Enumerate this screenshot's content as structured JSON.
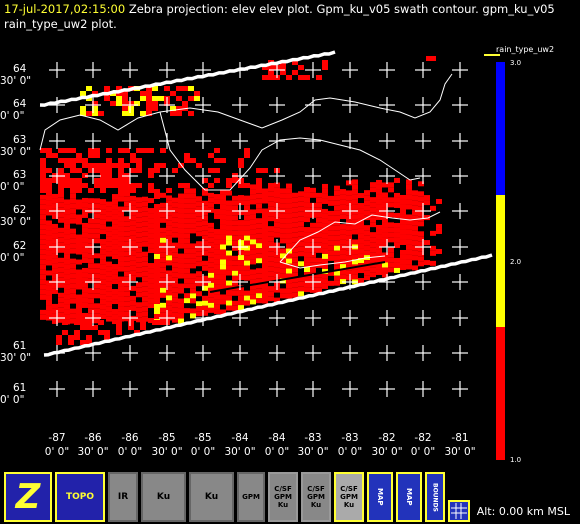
{
  "header": {
    "timestamp": "17-jul-2017,02:15:00",
    "line1_rest": "Zebra projection: elev elev  plot.  Gpm_ku_v05 swath contour.  gpm_ku_v05",
    "line2": "rain_type_uw2  plot."
  },
  "lat_labels": [
    {
      "deg": "64",
      "min": "30' 0\""
    },
    {
      "deg": "64",
      "min": "0' 0\""
    },
    {
      "deg": "63",
      "min": "30' 0\""
    },
    {
      "deg": "63",
      "min": "0' 0\""
    },
    {
      "deg": "62",
      "min": "30' 0\""
    },
    {
      "deg": "62",
      "min": "0' 0\""
    },
    {
      "deg": "61",
      "min": "30' 0\""
    },
    {
      "deg": "61",
      "min": "0' 0\""
    }
  ],
  "lon_labels": [
    {
      "deg": "-87",
      "min": "0' 0\""
    },
    {
      "deg": "-86",
      "min": "30' 0\""
    },
    {
      "deg": "-86",
      "min": "0' 0\""
    },
    {
      "deg": "-85",
      "min": "30' 0\""
    },
    {
      "deg": "-85",
      "min": "0' 0\""
    },
    {
      "deg": "-84",
      "min": "30' 0\""
    },
    {
      "deg": "-84",
      "min": "0' 0\""
    },
    {
      "deg": "-83",
      "min": "30' 0\""
    },
    {
      "deg": "-83",
      "min": "0' 0\""
    },
    {
      "deg": "-82",
      "min": "30' 0\""
    },
    {
      "deg": "-82",
      "min": "0' 0\""
    },
    {
      "deg": "-81",
      "min": "30' 0\""
    }
  ],
  "legend": {
    "title": "rain_type_uw2",
    "ticks": [
      "3.0",
      "2.0",
      "1.0"
    ],
    "colors": {
      "convective": "#ff0000",
      "stratiform": "#ffff00",
      "other": "#0000ff"
    }
  },
  "toolbar": {
    "buttons": [
      "Z",
      "TOPO",
      "IR",
      "Ku",
      "Ku",
      "GPM",
      "C/SF GPM Ku",
      "C/SF GPM Ku",
      "C/SF GPM Ku",
      "MAP",
      "MAP",
      "BOUNDS",
      "GRID"
    ]
  },
  "status": {
    "altitude": "Alt: 0.00 km MSL"
  }
}
